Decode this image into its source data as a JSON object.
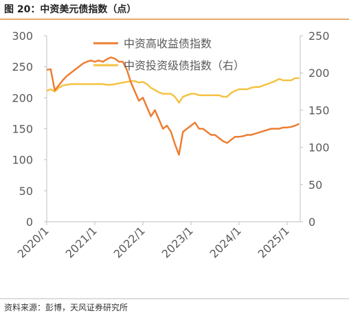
{
  "title": "图 20：中资美元债指数（点）",
  "source": "资料来源：彭博，天风证券研究所",
  "chart_data": {
    "type": "line",
    "categories": [
      "2020/1",
      "2020/2",
      "2020/3",
      "2020/4",
      "2020/5",
      "2020/6",
      "2020/7",
      "2020/8",
      "2020/9",
      "2020/10",
      "2020/11",
      "2020/12",
      "2021/1",
      "2021/2",
      "2021/3",
      "2021/4",
      "2021/5",
      "2021/6",
      "2021/7",
      "2021/8",
      "2021/9",
      "2021/10",
      "2021/11",
      "2021/12",
      "2022/1",
      "2022/2",
      "2022/3",
      "2022/4",
      "2022/5",
      "2022/6",
      "2022/7",
      "2022/8",
      "2022/9",
      "2022/10",
      "2022/11",
      "2022/12",
      "2023/1",
      "2023/2",
      "2023/3",
      "2023/4",
      "2023/5",
      "2023/6",
      "2023/7",
      "2023/8",
      "2023/9",
      "2023/10",
      "2023/11",
      "2023/12",
      "2024/1",
      "2024/2",
      "2024/3",
      "2024/4",
      "2024/5",
      "2024/6",
      "2024/7",
      "2024/8",
      "2024/9",
      "2024/10",
      "2024/11",
      "2024/12",
      "2025/1",
      "2025/2",
      "2025/3",
      "2025/4"
    ],
    "series": [
      {
        "name": "中资高收益债指数",
        "color": "#ed7d31",
        "values": [
          245,
          246,
          212,
          220,
          228,
          235,
          240,
          245,
          250,
          255,
          258,
          260,
          258,
          260,
          258,
          262,
          265,
          263,
          258,
          258,
          245,
          225,
          210,
          195,
          200,
          185,
          170,
          180,
          165,
          150,
          155,
          145,
          125,
          108,
          145,
          150,
          155,
          160,
          150,
          150,
          145,
          140,
          140,
          135,
          130,
          127,
          132,
          137,
          137,
          138,
          140,
          140,
          142,
          144,
          146,
          148,
          150,
          150,
          150,
          152,
          152,
          153,
          155,
          158
        ]
      },
      {
        "name": "中资投资级债指数（右）",
        "color": "#f5c242",
        "axis": "y2",
        "values": [
          176,
          178,
          175,
          180,
          183,
          184,
          185,
          185,
          185,
          185,
          185,
          185,
          185,
          185,
          185,
          184,
          184,
          185,
          186,
          187,
          188,
          189,
          189,
          187,
          188,
          185,
          180,
          177,
          174,
          172,
          172,
          172,
          168,
          160,
          168,
          170,
          172,
          172,
          170,
          170,
          170,
          170,
          170,
          170,
          168,
          168,
          173,
          176,
          178,
          178,
          178,
          180,
          181,
          181,
          183,
          185,
          187,
          189,
          192,
          190,
          190,
          190,
          193,
          193
        ]
      }
    ],
    "ylim": [
      0,
      300
    ],
    "yticks": [
      0,
      50,
      100,
      150,
      200,
      250,
      300
    ],
    "y2lim": [
      0,
      250
    ],
    "y2ticks": [
      0,
      50,
      100,
      150,
      200,
      250
    ]
  }
}
